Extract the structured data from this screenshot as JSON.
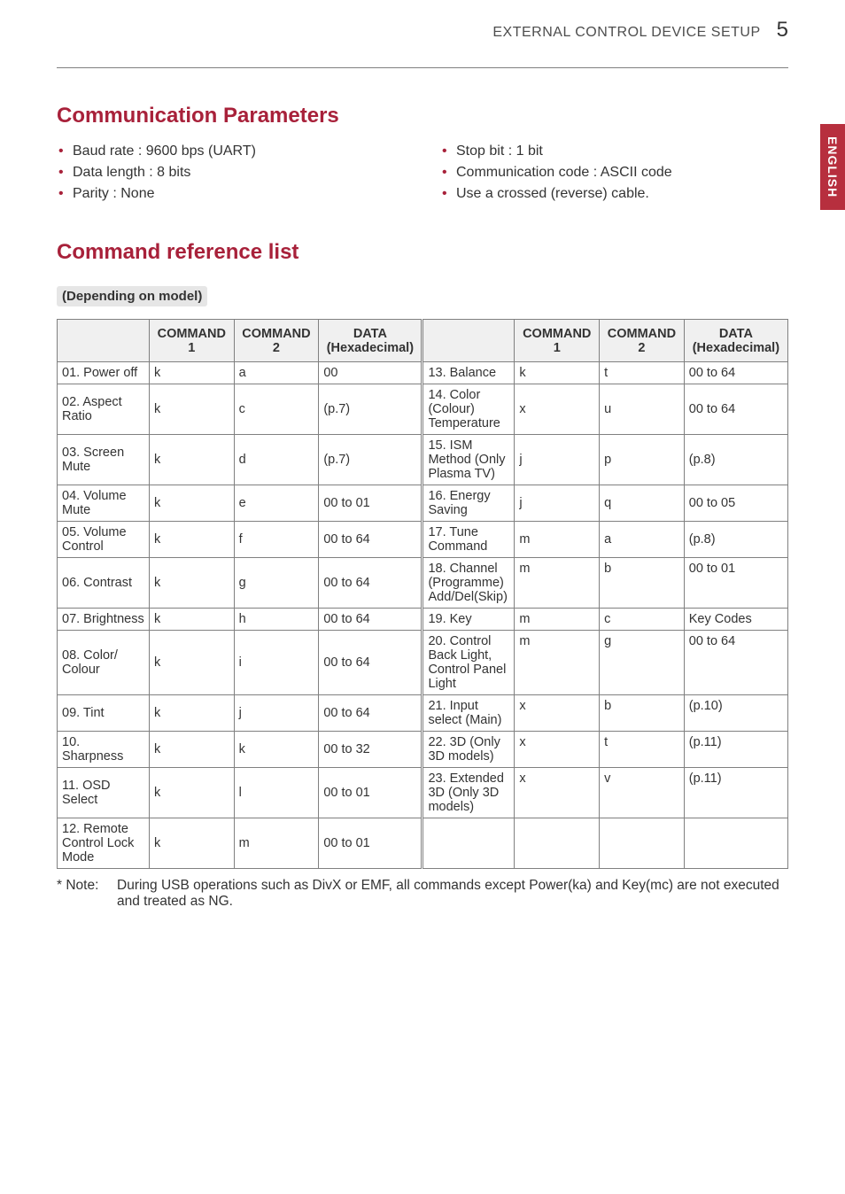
{
  "header": {
    "title": "EXTERNAL CONTROL DEVICE SETUP",
    "page_number": "5"
  },
  "side_tab": "ENGLISH",
  "section_comm_params": {
    "heading": "Communication Parameters",
    "left_items": [
      "Baud rate : 9600 bps (UART)",
      "Data length : 8 bits",
      "Parity : None"
    ],
    "right_items": [
      "Stop bit : 1 bit",
      "Communication code : ASCII code",
      "Use a crossed (reverse) cable."
    ]
  },
  "section_cmd_ref": {
    "heading": "Command reference list",
    "subtitle": "(Depending on model)",
    "col_headers": {
      "cmd1": "COMMAND1",
      "cmd2": "COMMAND2",
      "data": "DATA (Hexadecimal)"
    },
    "left_rows": [
      {
        "name": "01. Power off",
        "c1": "k",
        "c2": "a",
        "d": "00"
      },
      {
        "name": "02. Aspect Ratio",
        "c1": "k",
        "c2": "c",
        "d": "(p.7)"
      },
      {
        "name": "03. Screen Mute",
        "c1": "k",
        "c2": "d",
        "d": "(p.7)"
      },
      {
        "name": "04. Volume Mute",
        "c1": "k",
        "c2": "e",
        "d": "00 to 01"
      },
      {
        "name": "05. Volume Control",
        "c1": "k",
        "c2": "f",
        "d": "00 to 64"
      },
      {
        "name": "06. Contrast",
        "c1": "k",
        "c2": "g",
        "d": "00 to 64"
      },
      {
        "name": "07. Brightness",
        "c1": "k",
        "c2": "h",
        "d": "00 to 64"
      },
      {
        "name": "08. Color/ Colour",
        "c1": "k",
        "c2": "i",
        "d": "00 to 64"
      },
      {
        "name": "09. Tint",
        "c1": "k",
        "c2": "j",
        "d": "00 to 64"
      },
      {
        "name": "10. Sharpness",
        "c1": "k",
        "c2": "k",
        "d": "00 to 32"
      },
      {
        "name": "11. OSD Select",
        "c1": "k",
        "c2": "l",
        "d": "00 to 01"
      },
      {
        "name": "12. Remote Control Lock Mode",
        "c1": "k",
        "c2": "m",
        "d": "00 to 01"
      }
    ],
    "right_rows": [
      {
        "name": "13. Balance",
        "c1": "k",
        "c2": "t",
        "d": "00 to 64"
      },
      {
        "name": "14. Color (Colour) Temperature",
        "c1": "x",
        "c2": "u",
        "d": "00 to 64"
      },
      {
        "name": "15. ISM Method (Only Plasma TV)",
        "c1": "j",
        "c2": "p",
        "d": "(p.8)"
      },
      {
        "name": "16. Energy Saving",
        "c1": "j",
        "c2": "q",
        "d": "00 to 05"
      },
      {
        "name": "17. Tune Command",
        "c1": "m",
        "c2": "a",
        "d": "(p.8)"
      },
      {
        "name": "18. Channel (Programme) Add/Del(Skip)",
        "c1": "m",
        "c2": "b",
        "d": "00 to 01"
      },
      {
        "name": "19. Key",
        "c1": "m",
        "c2": "c",
        "d": "Key Codes"
      },
      {
        "name": "20. Control Back Light, Control Panel Light",
        "c1": "m",
        "c2": "g",
        "d": "00 to 64"
      },
      {
        "name": "21. Input select (Main)",
        "c1": "x",
        "c2": "b",
        "d": "(p.10)"
      },
      {
        "name": "22. 3D (Only 3D models)",
        "c1": "x",
        "c2": "t",
        "d": "(p.11)"
      },
      {
        "name": "23. Extended 3D (Only 3D models)",
        "c1": "x",
        "c2": "v",
        "d": "(p.11)"
      },
      {
        "name": "",
        "c1": "",
        "c2": "",
        "d": ""
      }
    ]
  },
  "footnote": {
    "label": "* Note:",
    "text": "During USB operations such as DivX or EMF, all commands except Power(ka) and Key(mc) are not executed and treated as NG."
  },
  "colors": {
    "accent": "#a8213a",
    "tab_bg": "#b72f3e",
    "border": "#808080",
    "th_bg": "#f0f0f0",
    "text": "#333333"
  }
}
